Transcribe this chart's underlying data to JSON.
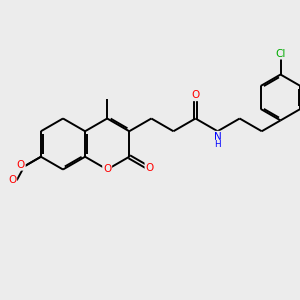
{
  "bg_color": "#ececec",
  "bond_color": "#000000",
  "bond_lw": 1.4,
  "figsize": [
    3.0,
    3.0
  ],
  "dpi": 100,
  "xlim": [
    0,
    10
  ],
  "ylim": [
    0,
    10
  ],
  "BL": 0.85,
  "colors": {
    "O": "#ff0000",
    "N": "#0000ff",
    "Cl": "#00aa00",
    "C": "#000000"
  },
  "font_size": 7.5
}
